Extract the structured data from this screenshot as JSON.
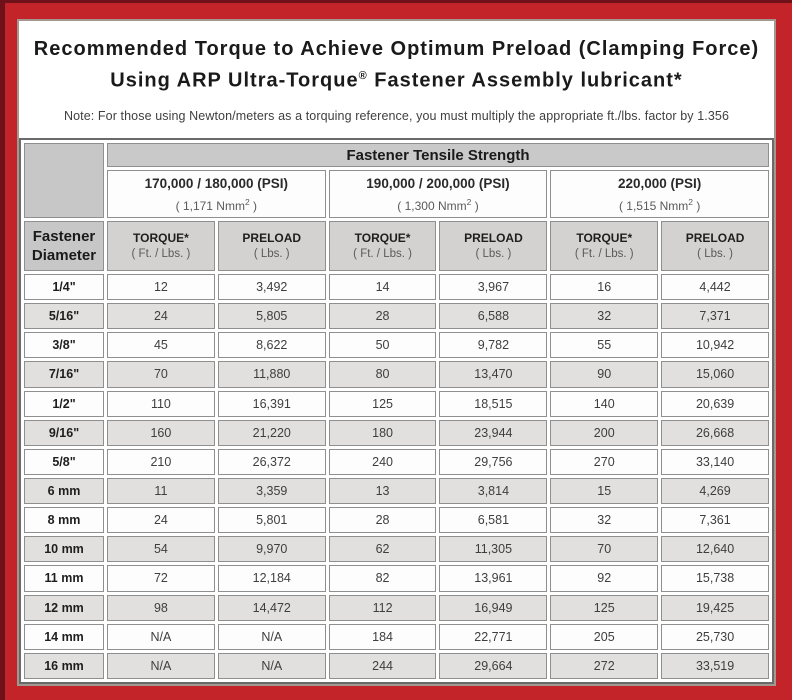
{
  "colors": {
    "frame_red": "#c2242a",
    "frame_maroon": "#6e1118",
    "content_border": "#a39791",
    "row_stripe_gray": "#e2e0de",
    "header_gray": "#c9c9c9"
  },
  "title": {
    "line1": "Recommended Torque to Achieve Optimum Preload (Clamping Force)",
    "line2_pre": "Using ARP Ultra-Torque",
    "line2_sup": "®",
    "line2_post": " Fastener Assembly lubricant*",
    "note": "Note: For those using Newton/meters as a torquing reference, you must multiply the appropriate ft./lbs. factor by 1.356"
  },
  "table": {
    "tensile_header": "Fastener Tensile Strength",
    "corner_header": {
      "line1": "Fastener",
      "line2": "Diameter"
    },
    "strength_groups": [
      {
        "psi": "170,000 / 180,000 (PSI)",
        "nmm_pre": "( 1,171 Nmm",
        "nmm_sup": "2",
        "nmm_post": " )"
      },
      {
        "psi": "190,000 / 200,000 (PSI)",
        "nmm_pre": "( 1,300 Nmm",
        "nmm_sup": "2",
        "nmm_post": " )"
      },
      {
        "psi": "220,000 (PSI)",
        "nmm_pre": "( 1,515 Nmm",
        "nmm_sup": "2",
        "nmm_post": " )"
      }
    ],
    "col_headers": [
      {
        "title": "TORQUE*",
        "sub": "( Ft. / Lbs. )"
      },
      {
        "title": "PRELOAD",
        "sub": "( Lbs. )"
      },
      {
        "title": "TORQUE*",
        "sub": "( Ft. / Lbs. )"
      },
      {
        "title": "PRELOAD",
        "sub": "( Lbs. )"
      },
      {
        "title": "TORQUE*",
        "sub": "( Ft. / Lbs. )"
      },
      {
        "title": "PRELOAD",
        "sub": "( Lbs. )"
      }
    ],
    "rows": [
      {
        "diameter": "1/4\"",
        "values": [
          "12",
          "3,492",
          "14",
          "3,967",
          "16",
          "4,442"
        ]
      },
      {
        "diameter": "5/16\"",
        "values": [
          "24",
          "5,805",
          "28",
          "6,588",
          "32",
          "7,371"
        ]
      },
      {
        "diameter": "3/8\"",
        "values": [
          "45",
          "8,622",
          "50",
          "9,782",
          "55",
          "10,942"
        ]
      },
      {
        "diameter": "7/16\"",
        "values": [
          "70",
          "11,880",
          "80",
          "13,470",
          "90",
          "15,060"
        ]
      },
      {
        "diameter": "1/2\"",
        "values": [
          "110",
          "16,391",
          "125",
          "18,515",
          "140",
          "20,639"
        ]
      },
      {
        "diameter": "9/16\"",
        "values": [
          "160",
          "21,220",
          "180",
          "23,944",
          "200",
          "26,668"
        ]
      },
      {
        "diameter": "5/8\"",
        "values": [
          "210",
          "26,372",
          "240",
          "29,756",
          "270",
          "33,140"
        ]
      },
      {
        "diameter": "6 mm",
        "values": [
          "11",
          "3,359",
          "13",
          "3,814",
          "15",
          "4,269"
        ]
      },
      {
        "diameter": "8 mm",
        "values": [
          "24",
          "5,801",
          "28",
          "6,581",
          "32",
          "7,361"
        ]
      },
      {
        "diameter": "10 mm",
        "values": [
          "54",
          "9,970",
          "62",
          "11,305",
          "70",
          "12,640"
        ]
      },
      {
        "diameter": "11 mm",
        "values": [
          "72",
          "12,184",
          "82",
          "13,961",
          "92",
          "15,738"
        ]
      },
      {
        "diameter": "12 mm",
        "values": [
          "98",
          "14,472",
          "112",
          "16,949",
          "125",
          "19,425"
        ]
      },
      {
        "diameter": "14 mm",
        "values": [
          "N/A",
          "N/A",
          "184",
          "22,771",
          "205",
          "25,730"
        ]
      },
      {
        "diameter": "16 mm",
        "values": [
          "N/A",
          "N/A",
          "244",
          "29,664",
          "272",
          "33,519"
        ]
      }
    ]
  }
}
